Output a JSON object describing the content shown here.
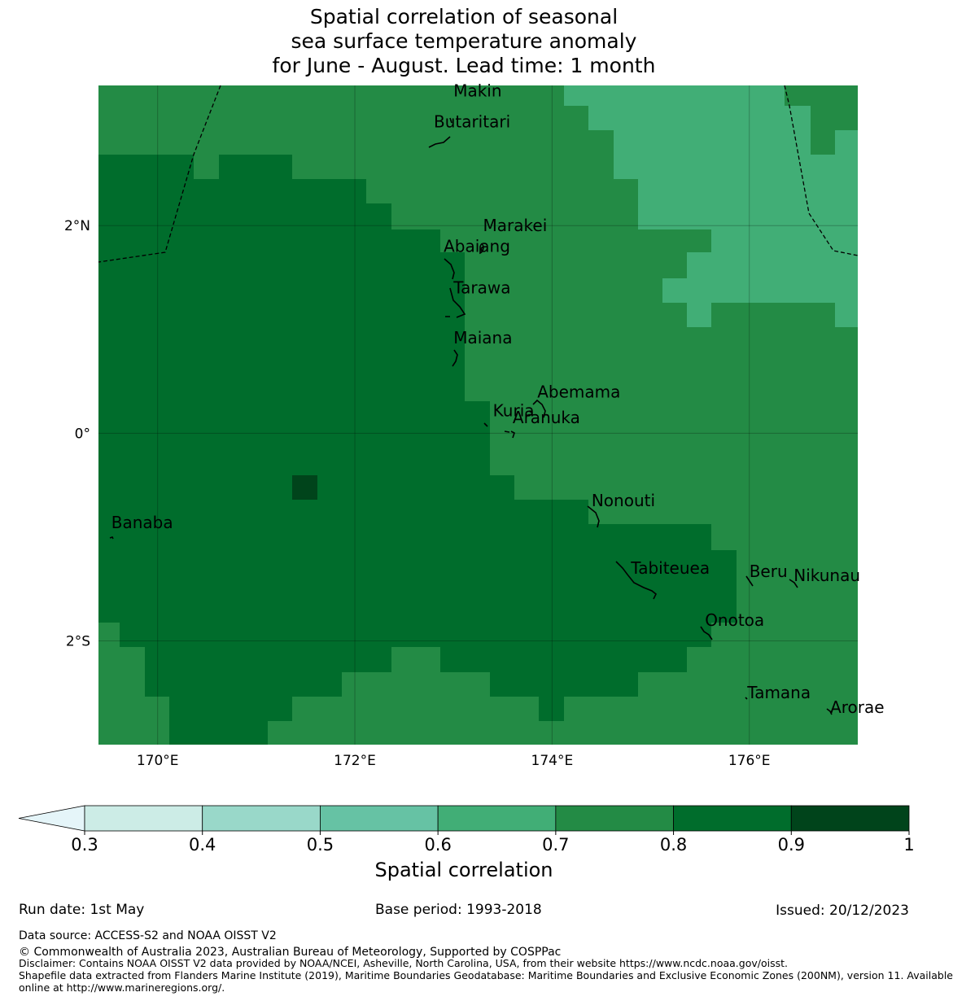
{
  "title": {
    "line1": "Spatial correlation of seasonal",
    "line2": "sea surface temperature anomaly",
    "line3": "for June - August. Lead time: 1 month"
  },
  "map": {
    "lon_range": [
      169.4,
      177.1
    ],
    "lat_range": [
      -3.0,
      3.35
    ],
    "x_ticks": [
      {
        "lon": 170,
        "label": "170°E"
      },
      {
        "lon": 172,
        "label": "172°E"
      },
      {
        "lon": 174,
        "label": "174°E"
      },
      {
        "lon": 176,
        "label": "176°E"
      }
    ],
    "y_ticks": [
      {
        "lat": 2,
        "label": "2°N"
      },
      {
        "lat": 0,
        "label": "0°"
      },
      {
        "lat": -2,
        "label": "2°S"
      }
    ],
    "places": [
      {
        "name": "Makin",
        "lon": 173.0,
        "lat": 3.3
      },
      {
        "name": "Butaritari",
        "lon": 172.8,
        "lat": 3.0
      },
      {
        "name": "Marakei",
        "lon": 173.3,
        "lat": 2.0
      },
      {
        "name": "Abaiang",
        "lon": 172.9,
        "lat": 1.8
      },
      {
        "name": "Tarawa",
        "lon": 173.0,
        "lat": 1.4
      },
      {
        "name": "Maiana",
        "lon": 173.0,
        "lat": 0.92
      },
      {
        "name": "Abemama",
        "lon": 173.85,
        "lat": 0.4
      },
      {
        "name": "Kuria",
        "lon": 173.4,
        "lat": 0.22
      },
      {
        "name": "Aranuka",
        "lon": 173.6,
        "lat": 0.15
      },
      {
        "name": "Nonouti",
        "lon": 174.4,
        "lat": -0.65
      },
      {
        "name": "Banaba",
        "lon": 169.53,
        "lat": -0.86
      },
      {
        "name": "Tabiteuea",
        "lon": 174.8,
        "lat": -1.3
      },
      {
        "name": "Beru",
        "lon": 176.0,
        "lat": -1.33
      },
      {
        "name": "Nikunau",
        "lon": 176.45,
        "lat": -1.37
      },
      {
        "name": "Onotoa",
        "lon": 175.55,
        "lat": -1.8
      },
      {
        "name": "Tamana",
        "lon": 175.98,
        "lat": -2.5
      },
      {
        "name": "Arorae",
        "lon": 176.82,
        "lat": -2.64
      }
    ]
  },
  "colorbar": {
    "title": "Spatial correlation",
    "bounds": [
      0.3,
      0.4,
      0.5,
      0.6,
      0.7,
      0.8,
      0.9,
      1
    ],
    "tick_labels": [
      "0.3",
      "0.4",
      "0.5",
      "0.6",
      "0.7",
      "0.8",
      "0.9",
      "1"
    ],
    "colors": [
      "#ccece6",
      "#99d8c9",
      "#66c2a4",
      "#41ae76",
      "#238b45",
      "#006d2c",
      "#00441b"
    ],
    "under_color": "#e5f5f9"
  },
  "footer": {
    "run_date": "Run date: 1st May",
    "base_period": "Base period: 1993-2018",
    "issued": "Issued: 20/12/2023",
    "data_source": "Data source: ACCESS-S2 and NOAA OISST V2",
    "copyright": "© Commonwealth of Australia 2023, Australian Bureau of Meteorology, Supported by COSPPac",
    "disclaimer": "Disclaimer: Contains NOAA OISST V2 data provided by NOAA/NCEI, Asheville, North Carolina, USA, from their website https://www.ncdc.noaa.gov/oisst.",
    "shapefile1": "Shapefile data extracted from Flanders Marine Institute (2019), Maritime Boundaries Geodatabase: Maritime Boundaries and Exclusive Economic Zones (200NM), version 11. Available",
    "shapefile2": "online at http://www.marineregions.org/."
  }
}
